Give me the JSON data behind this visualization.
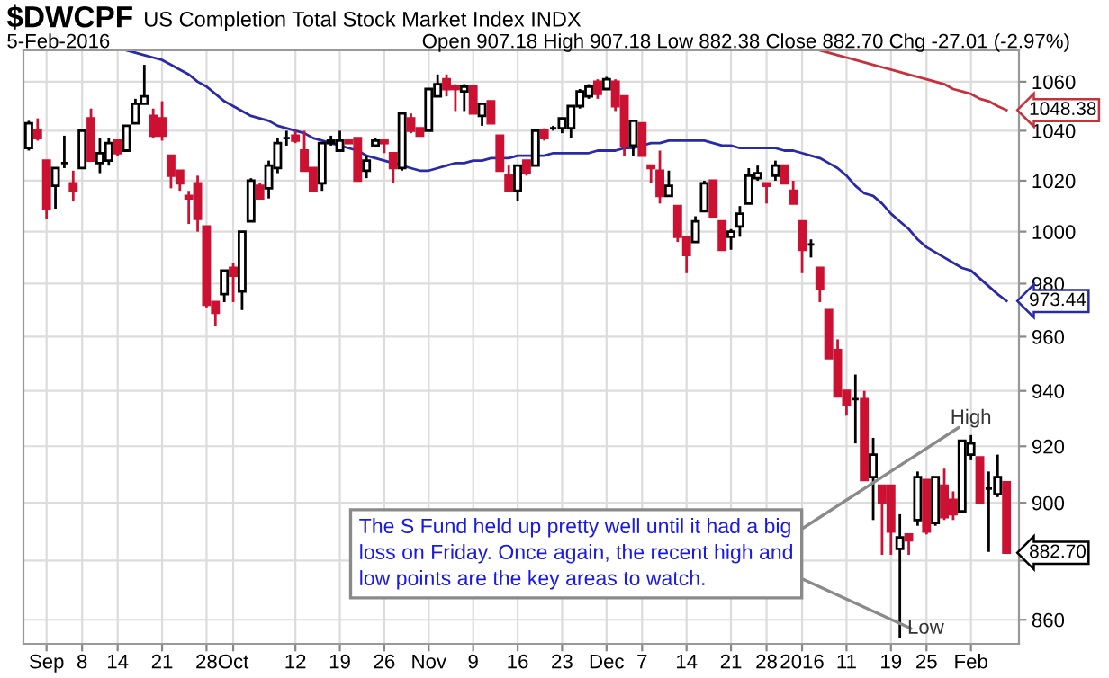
{
  "chart_data": {
    "type": "candlestick",
    "title": "$DWCPF",
    "subtitle": "US Completion Total Stock Market Index INDX",
    "categories": [
      null,
      null,
      "Sep",
      null,
      null,
      null,
      "8",
      null,
      null,
      null,
      "14",
      null,
      null,
      null,
      null,
      "21",
      null,
      null,
      null,
      null,
      "28",
      null,
      null,
      "Oct",
      null,
      null,
      null,
      null,
      null,
      null,
      "12",
      null,
      null,
      null,
      null,
      "19",
      null,
      null,
      null,
      null,
      "26",
      null,
      null,
      null,
      null,
      "Nov",
      null,
      null,
      null,
      null,
      "9",
      null,
      null,
      null,
      null,
      "16",
      null,
      null,
      null,
      null,
      "23",
      null,
      null,
      null,
      null,
      "Dec",
      null,
      null,
      null,
      "7",
      null,
      null,
      null,
      null,
      "14",
      null,
      null,
      null,
      null,
      "21",
      null,
      null,
      null,
      "28",
      null,
      null,
      null,
      "2016",
      null,
      null,
      null,
      null,
      "11",
      null,
      null,
      null,
      null,
      "19",
      null,
      null,
      null,
      "25",
      null,
      null,
      null,
      null,
      "Feb",
      null,
      null,
      null,
      null
    ],
    "ohlc": [
      [
        1033,
        1044,
        1032,
        1043
      ],
      [
        1040,
        1045,
        1036,
        1037
      ],
      [
        1028,
        1028,
        1005,
        1009
      ],
      [
        1018,
        1025,
        1009,
        1025
      ],
      [
        1027,
        1038,
        1025,
        1027
      ],
      [
        1019,
        1024,
        1012,
        1016
      ],
      [
        1025,
        1040,
        1025,
        1040
      ],
      [
        1045,
        1049,
        1028,
        1028
      ],
      [
        1027,
        1037,
        1023,
        1031
      ],
      [
        1028,
        1037,
        1026,
        1035
      ],
      [
        1036,
        1036,
        1030,
        1031
      ],
      [
        1032,
        1042,
        1032,
        1042
      ],
      [
        1043,
        1053,
        1043,
        1051
      ],
      [
        1051,
        1067,
        1051,
        1054
      ],
      [
        1046,
        1049,
        1037,
        1038
      ],
      [
        1045,
        1052,
        1036,
        1038
      ],
      [
        1030,
        1030,
        1017,
        1022
      ],
      [
        1024,
        1024,
        1016,
        1019
      ],
      [
        1014,
        1016,
        1003,
        1013
      ],
      [
        1019,
        1022,
        1000,
        1005
      ],
      [
        1002,
        1002,
        971,
        972
      ],
      [
        973,
        973,
        964,
        969
      ],
      [
        976,
        985,
        973,
        985
      ],
      [
        986,
        988,
        973,
        983
      ],
      [
        977,
        1000,
        970,
        1000
      ],
      [
        1004,
        1021,
        1004,
        1020
      ],
      [
        1018,
        1019,
        1013,
        1013
      ],
      [
        1017,
        1028,
        1013,
        1026
      ],
      [
        1025,
        1037,
        1023,
        1035
      ],
      [
        1037,
        1040,
        1034,
        1037
      ],
      [
        1038,
        1040,
        1035,
        1036
      ],
      [
        1032,
        1040,
        1024,
        1024
      ],
      [
        1025,
        1025,
        1016,
        1016
      ],
      [
        1019,
        1035,
        1016,
        1035
      ],
      [
        1035,
        1038,
        1034,
        1036
      ],
      [
        1032,
        1040,
        1032,
        1036
      ],
      [
        1036,
        1036,
        1035,
        1035
      ],
      [
        1037,
        1037,
        1020,
        1020
      ],
      [
        1024,
        1030,
        1021,
        1028
      ],
      [
        1034,
        1037,
        1034,
        1036
      ],
      [
        1036,
        1036,
        1031,
        1035
      ],
      [
        1031,
        1031,
        1019,
        1025
      ],
      [
        1025,
        1047,
        1024,
        1047
      ],
      [
        1045,
        1047,
        1039,
        1040
      ],
      [
        1041,
        1041,
        1038,
        1038
      ],
      [
        1040,
        1057,
        1040,
        1057
      ],
      [
        1054,
        1063,
        1054,
        1059
      ],
      [
        1061,
        1063,
        1054,
        1057
      ],
      [
        1058,
        1059,
        1048,
        1057
      ],
      [
        1056,
        1059,
        1048,
        1058
      ],
      [
        1058,
        1058,
        1047,
        1047
      ],
      [
        1046,
        1051,
        1042,
        1051
      ],
      [
        1052,
        1052,
        1043,
        1043
      ],
      [
        1038,
        1038,
        1024,
        1024
      ],
      [
        1022,
        1026,
        1016,
        1016
      ],
      [
        1016,
        1026,
        1012,
        1026
      ],
      [
        1028,
        1028,
        1022,
        1023
      ],
      [
        1026,
        1040,
        1026,
        1040
      ],
      [
        1040,
        1041,
        1036,
        1037
      ],
      [
        1041,
        1042,
        1040,
        1041
      ],
      [
        1041,
        1045,
        1039,
        1045
      ],
      [
        1041,
        1050,
        1037,
        1050
      ],
      [
        1050,
        1057,
        1049,
        1056
      ],
      [
        1054,
        1059,
        1053,
        1058
      ],
      [
        1060,
        1061,
        1053,
        1055
      ],
      [
        1057,
        1062,
        1057,
        1061
      ],
      [
        1060,
        1061,
        1048,
        1050
      ],
      [
        1054,
        1054,
        1030,
        1034
      ],
      [
        1034,
        1044,
        1030,
        1044
      ],
      [
        1043,
        1043,
        1030,
        1030
      ],
      [
        1026,
        1026,
        1019,
        1025
      ],
      [
        1024,
        1032,
        1011,
        1014
      ],
      [
        1014,
        1024,
        1014,
        1018
      ],
      [
        1010,
        1010,
        996,
        998
      ],
      [
        998,
        998,
        984,
        991
      ],
      [
        996,
        1006,
        996,
        1004
      ],
      [
        1008,
        1020,
        1008,
        1019
      ],
      [
        1020,
        1020,
        1006,
        1006
      ],
      [
        1004,
        1004,
        993,
        993
      ],
      [
        998,
        1001,
        993,
        1000
      ],
      [
        1002,
        1010,
        998,
        1007
      ],
      [
        1011,
        1025,
        1011,
        1022
      ],
      [
        1021,
        1026,
        1020,
        1023
      ],
      [
        1019,
        1019,
        1011,
        1018
      ],
      [
        1022,
        1028,
        1020,
        1026
      ],
      [
        1026,
        1026,
        1019,
        1019
      ],
      [
        1016,
        1020,
        1011,
        1011
      ],
      [
        1004,
        1004,
        984,
        993
      ],
      [
        995,
        997,
        990,
        995
      ],
      [
        986,
        986,
        973,
        978
      ],
      [
        970,
        970,
        952,
        952
      ],
      [
        955,
        959,
        938,
        938
      ],
      [
        940,
        940,
        931,
        935
      ],
      [
        937,
        946,
        921,
        937
      ],
      [
        937,
        940,
        908,
        908
      ],
      [
        909,
        923,
        894,
        917
      ],
      [
        906,
        906,
        882,
        900
      ],
      [
        906,
        906,
        882,
        890
      ],
      [
        884,
        896,
        854,
        888
      ],
      [
        889,
        889,
        882,
        887
      ],
      [
        894,
        911,
        892,
        909
      ],
      [
        908,
        908,
        889,
        890
      ],
      [
        893,
        909,
        892,
        909
      ],
      [
        906,
        912,
        894,
        895
      ],
      [
        901,
        904,
        894,
        896
      ],
      [
        897,
        922,
        897,
        922
      ],
      [
        917,
        924,
        915,
        921
      ],
      [
        916,
        916,
        900,
        900
      ],
      [
        905,
        911,
        883,
        905
      ],
      [
        903,
        917,
        902,
        909
      ],
      [
        907.18,
        907.18,
        882.38,
        882.7
      ]
    ],
    "colors": [
      "#ffffff",
      "#cc1133",
      "#cc1133",
      "#ffffff",
      "#000000",
      "#cc1133",
      "#ffffff",
      "#cc1133",
      "#ffffff",
      "#ffffff",
      "#cc1133",
      "#ffffff",
      "#ffffff",
      "#ffffff",
      "#cc1133",
      "#cc1133",
      "#cc1133",
      "#cc1133",
      "#cc1133",
      "#cc1133",
      "#cc1133",
      "#cc1133",
      "#ffffff",
      "#cc1133",
      "#ffffff",
      "#ffffff",
      "#cc1133",
      "#ffffff",
      "#ffffff",
      "#000000",
      "#cc1133",
      "#cc1133",
      "#cc1133",
      "#ffffff",
      "#ffffff",
      "#ffffff",
      "#cc1133",
      "#cc1133",
      "#ffffff",
      "#ffffff",
      "#cc1133",
      "#cc1133",
      "#ffffff",
      "#cc1133",
      "#cc1133",
      "#ffffff",
      "#ffffff",
      "#cc1133",
      "#cc1133",
      "#ffffff",
      "#cc1133",
      "#ffffff",
      "#cc1133",
      "#cc1133",
      "#cc1133",
      "#ffffff",
      "#cc1133",
      "#ffffff",
      "#cc1133",
      "#000000",
      "#ffffff",
      "#ffffff",
      "#ffffff",
      "#ffffff",
      "#cc1133",
      "#ffffff",
      "#cc1133",
      "#cc1133",
      "#ffffff",
      "#cc1133",
      "#cc1133",
      "#cc1133",
      "#ffffff",
      "#cc1133",
      "#cc1133",
      "#ffffff",
      "#ffffff",
      "#cc1133",
      "#cc1133",
      "#ffffff",
      "#ffffff",
      "#ffffff",
      "#ffffff",
      "#cc1133",
      "#ffffff",
      "#cc1133",
      "#cc1133",
      "#cc1133",
      "#000000",
      "#cc1133",
      "#cc1133",
      "#cc1133",
      "#cc1133",
      "#000000",
      "#cc1133",
      "#ffffff",
      "#cc1133",
      "#cc1133",
      "#ffffff",
      "#cc1133",
      "#ffffff",
      "#cc1133",
      "#ffffff",
      "#cc1133",
      "#cc1133",
      "#ffffff",
      "#ffffff",
      "#cc1133",
      "#000000",
      "#ffffff",
      "#cc1133"
    ],
    "value_labels": [
      null,
      null,
      null,
      null,
      null,
      null,
      null,
      null,
      null,
      null,
      null,
      null,
      null,
      null,
      null,
      null,
      null,
      null,
      null,
      null,
      null,
      null,
      null,
      null,
      null,
      null,
      null,
      null,
      null,
      null,
      null,
      null,
      null,
      null,
      null,
      null,
      null,
      null,
      null,
      null,
      null,
      null,
      null,
      null,
      null,
      null,
      null,
      null,
      null,
      null,
      null,
      null,
      null,
      null,
      null,
      null,
      null,
      null,
      null,
      null,
      null,
      null,
      null,
      null,
      null,
      null,
      null,
      null,
      null,
      null,
      null,
      null,
      null,
      null,
      null,
      null,
      null,
      null,
      null,
      null,
      null,
      null,
      null,
      null,
      null,
      null,
      null,
      null,
      null,
      null,
      null,
      null,
      null,
      null,
      null,
      null,
      null,
      null,
      null,
      null,
      null,
      null,
      null,
      null,
      null,
      null,
      null,
      null,
      null,
      null,
      "882.70"
    ],
    "series": [
      {
        "type": "line",
        "color": "#2a2aa8",
        "values": [
          null,
          null,
          null,
          null,
          null,
          null,
          null,
          null,
          null,
          null,
          null,
          1073,
          1072,
          1071,
          1070,
          1069,
          1067,
          1065,
          1063,
          1060,
          1058,
          1055,
          1052,
          1050,
          1048,
          1046,
          1045,
          1044,
          1042,
          1041,
          1040,
          1039,
          1037,
          1036,
          1035,
          1034,
          1033,
          1032,
          1030,
          1029,
          1028,
          1027,
          1026,
          1025,
          1024,
          1024,
          1025,
          1026,
          1027,
          1027,
          1028,
          1028,
          1029,
          1029,
          1029,
          1030,
          1030,
          1030,
          1030,
          1031,
          1031,
          1031,
          1031,
          1031,
          1032,
          1032,
          1032,
          1033,
          1033,
          1034,
          1035,
          1035,
          1036,
          1036,
          1036,
          1036,
          1036,
          1035,
          1034,
          1034,
          1033,
          1033,
          1033,
          1033,
          1033,
          1032,
          1032,
          1031,
          1030,
          1029,
          1027,
          1025,
          1022,
          1018,
          1015,
          1014,
          1011,
          1007,
          1004,
          1001,
          997,
          994,
          992,
          990,
          988,
          986,
          985,
          982,
          979,
          976,
          973.44
        ],
        "value_labels": [
          null,
          null,
          null,
          null,
          null,
          null,
          null,
          null,
          null,
          null,
          null,
          null,
          null,
          null,
          null,
          null,
          null,
          null,
          null,
          null,
          null,
          null,
          null,
          null,
          null,
          null,
          null,
          null,
          null,
          null,
          null,
          null,
          null,
          null,
          null,
          null,
          null,
          null,
          null,
          null,
          null,
          null,
          null,
          null,
          null,
          null,
          null,
          null,
          null,
          null,
          null,
          null,
          null,
          null,
          null,
          null,
          null,
          null,
          null,
          null,
          null,
          null,
          null,
          null,
          null,
          null,
          null,
          null,
          null,
          null,
          null,
          null,
          null,
          null,
          null,
          null,
          null,
          null,
          null,
          null,
          null,
          null,
          null,
          null,
          null,
          null,
          null,
          null,
          null,
          null,
          null,
          null,
          null,
          null,
          null,
          null,
          null,
          null,
          null,
          null,
          null,
          null,
          null,
          null,
          null,
          null,
          null,
          null,
          null,
          null,
          "973.44"
        ]
      },
      {
        "type": "line",
        "color": "#c8303c",
        "values": [
          null,
          null,
          null,
          null,
          null,
          null,
          null,
          null,
          null,
          null,
          null,
          null,
          null,
          null,
          null,
          null,
          null,
          null,
          null,
          null,
          null,
          null,
          null,
          null,
          null,
          null,
          null,
          null,
          null,
          null,
          null,
          null,
          null,
          null,
          null,
          null,
          null,
          null,
          null,
          null,
          null,
          null,
          null,
          null,
          null,
          null,
          null,
          null,
          null,
          null,
          null,
          null,
          null,
          null,
          null,
          null,
          null,
          null,
          null,
          null,
          null,
          null,
          null,
          null,
          null,
          null,
          null,
          null,
          null,
          null,
          null,
          null,
          null,
          null,
          null,
          null,
          null,
          null,
          null,
          null,
          null,
          null,
          null,
          null,
          null,
          null,
          null,
          null,
          null,
          1073,
          1072,
          1071,
          1070,
          1069,
          1068,
          1067,
          1066,
          1065,
          1064,
          1063,
          1062,
          1061,
          1060,
          1059,
          1057,
          1056,
          1055,
          1053,
          1052,
          1050,
          1048.38
        ],
        "value_labels": [
          null,
          null,
          null,
          null,
          null,
          null,
          null,
          null,
          null,
          null,
          null,
          null,
          null,
          null,
          null,
          null,
          null,
          null,
          null,
          null,
          null,
          null,
          null,
          null,
          null,
          null,
          null,
          null,
          null,
          null,
          null,
          null,
          null,
          null,
          null,
          null,
          null,
          null,
          null,
          null,
          null,
          null,
          null,
          null,
          null,
          null,
          null,
          null,
          null,
          null,
          null,
          null,
          null,
          null,
          null,
          null,
          null,
          null,
          null,
          null,
          null,
          null,
          null,
          null,
          null,
          null,
          null,
          null,
          null,
          null,
          null,
          null,
          null,
          null,
          null,
          null,
          null,
          null,
          null,
          null,
          null,
          null,
          null,
          null,
          null,
          null,
          null,
          null,
          null,
          null,
          null,
          null,
          null,
          null,
          null,
          null,
          null,
          null,
          null,
          null,
          null,
          null,
          null,
          null,
          null,
          null,
          null,
          null,
          null,
          null,
          "1048.38"
        ]
      }
    ],
    "log": true,
    "ylim": [
      852,
      1073
    ],
    "yticks": [
      860,
      {
        "value": 880,
        "label": null
      },
      900,
      920,
      940,
      960,
      980,
      1000,
      1020,
      1040,
      1060
    ],
    "grid": true,
    "annotations": [
      "5-Feb-2016",
      "Open 907.18 High 907.18 Low 882.38 Close 882.70 Chg -27.01 (-2.97%)",
      "The S Fund held up pretty well until it had a big loss on Friday. Once again, the recent high and low points are the key areas to watch.",
      {
        "text": "High",
        "y": 924
      },
      "Low"
    ]
  }
}
